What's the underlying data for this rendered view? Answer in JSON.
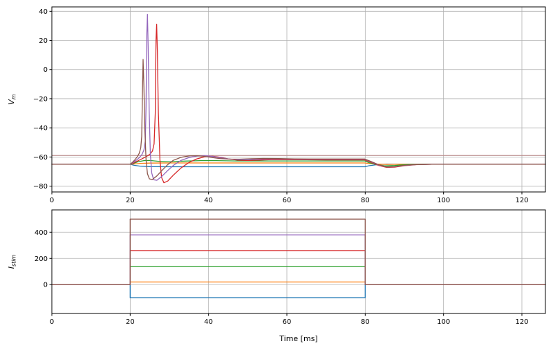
{
  "figure": {
    "background": "#ffffff",
    "grid_color": "#b0b0b0",
    "spine_color": "#000000"
  },
  "chart_data": [
    {
      "type": "line",
      "title": "",
      "xlabel": "",
      "ylabel": "V_m",
      "ylabel_parts": {
        "main": "V",
        "sub": "m"
      },
      "xlim": [
        0,
        126
      ],
      "ylim": [
        -84,
        43
      ],
      "x_ticks": [
        0,
        20,
        40,
        60,
        80,
        100,
        120
      ],
      "y_ticks": [
        -80,
        -60,
        -40,
        -20,
        0,
        20,
        40
      ],
      "grid": true,
      "legend": false,
      "annotations": [
        {
          "type": "hline",
          "y": -59,
          "color": "#bc8f8f",
          "label": "threshold-line"
        }
      ],
      "series": [
        {
          "name": "stim=-100",
          "color": "#1f77b4",
          "points": [
            [
              0,
              -65
            ],
            [
              20,
              -65
            ],
            [
              21,
              -65.7
            ],
            [
              22.5,
              -66.3
            ],
            [
              25,
              -66.6
            ],
            [
              30,
              -66.7
            ],
            [
              79.9,
              -66.7
            ],
            [
              81,
              -66
            ],
            [
              83,
              -65.3
            ],
            [
              85.5,
              -64.9
            ],
            [
              89,
              -65
            ],
            [
              126,
              -65
            ]
          ]
        },
        {
          "name": "stim=20",
          "color": "#ff7f0e",
          "points": [
            [
              0,
              -65
            ],
            [
              20,
              -65
            ],
            [
              21,
              -64.8
            ],
            [
              22.5,
              -64.4
            ],
            [
              25,
              -64.2
            ],
            [
              30,
              -64.1
            ],
            [
              79.9,
              -64.1
            ],
            [
              81,
              -64.5
            ],
            [
              83,
              -64.9
            ],
            [
              85.5,
              -65.1
            ],
            [
              89,
              -65
            ],
            [
              126,
              -65
            ]
          ]
        },
        {
          "name": "stim=140",
          "color": "#2ca02c",
          "points": [
            [
              0,
              -65
            ],
            [
              20,
              -65
            ],
            [
              21,
              -64.2
            ],
            [
              22,
              -63.3
            ],
            [
              23.5,
              -62.5
            ],
            [
              25,
              -62.4
            ],
            [
              27,
              -62.9
            ],
            [
              29,
              -63.3
            ],
            [
              31,
              -63.2
            ],
            [
              34,
              -62.8
            ],
            [
              38,
              -62.5
            ],
            [
              42,
              -62.5
            ],
            [
              47,
              -62.7
            ],
            [
              55,
              -62.7
            ],
            [
              65,
              -62.7
            ],
            [
              79.9,
              -62.7
            ],
            [
              81,
              -63.9
            ],
            [
              83,
              -65.4
            ],
            [
              85,
              -66.1
            ],
            [
              87.5,
              -65.8
            ],
            [
              91,
              -65.2
            ],
            [
              96,
              -65
            ],
            [
              126,
              -65
            ]
          ]
        },
        {
          "name": "stim=260",
          "color": "#d62728",
          "points": [
            [
              0,
              -65
            ],
            [
              20,
              -65
            ],
            [
              21,
              -63.9
            ],
            [
              22,
              -62.6
            ],
            [
              23,
              -61.3
            ],
            [
              24,
              -59.9
            ],
            [
              25,
              -58.2
            ],
            [
              25.7,
              -55.9
            ],
            [
              26.1,
              -51
            ],
            [
              26.4,
              -30
            ],
            [
              26.6,
              20
            ],
            [
              26.75,
              31
            ],
            [
              26.95,
              12
            ],
            [
              27.2,
              -30
            ],
            [
              27.6,
              -62
            ],
            [
              28,
              -74
            ],
            [
              28.6,
              -77.7
            ],
            [
              29.6,
              -76.5
            ],
            [
              31,
              -72.5
            ],
            [
              33,
              -67.5
            ],
            [
              35,
              -63.8
            ],
            [
              37,
              -61.3
            ],
            [
              39,
              -59.9
            ],
            [
              41,
              -59.5
            ],
            [
              43,
              -60.2
            ],
            [
              45,
              -61.3
            ],
            [
              47.5,
              -62.2
            ],
            [
              50,
              -62.4
            ],
            [
              53,
              -62.1
            ],
            [
              56,
              -61.8
            ],
            [
              60,
              -61.8
            ],
            [
              65,
              -61.9
            ],
            [
              70,
              -62
            ],
            [
              75,
              -62
            ],
            [
              79.9,
              -62
            ],
            [
              81.5,
              -63.7
            ],
            [
              83.5,
              -65.9
            ],
            [
              85.5,
              -67.2
            ],
            [
              87.5,
              -67
            ],
            [
              90,
              -66
            ],
            [
              93,
              -65.3
            ],
            [
              97,
              -65
            ],
            [
              126,
              -65
            ]
          ]
        },
        {
          "name": "stim=380",
          "color": "#9467bd",
          "points": [
            [
              0,
              -65
            ],
            [
              20,
              -65
            ],
            [
              20.8,
              -63.7
            ],
            [
              21.6,
              -62.1
            ],
            [
              22.4,
              -60.3
            ],
            [
              23,
              -58.3
            ],
            [
              23.5,
              -55.3
            ],
            [
              23.85,
              -49
            ],
            [
              24.05,
              -25
            ],
            [
              24.25,
              25
            ],
            [
              24.4,
              38
            ],
            [
              24.6,
              14
            ],
            [
              24.85,
              -28
            ],
            [
              25.15,
              -58
            ],
            [
              25.5,
              -71
            ],
            [
              26,
              -75.6
            ],
            [
              26.8,
              -76
            ],
            [
              28,
              -73.5
            ],
            [
              29.5,
              -69.5
            ],
            [
              31,
              -65.8
            ],
            [
              33,
              -62.3
            ],
            [
              35,
              -60.4
            ],
            [
              37,
              -59.4
            ],
            [
              39,
              -59.1
            ],
            [
              41,
              -59.6
            ],
            [
              43,
              -60.5
            ],
            [
              45,
              -61.3
            ],
            [
              47.5,
              -61.9
            ],
            [
              50,
              -61.9
            ],
            [
              53,
              -61.5
            ],
            [
              56,
              -61.3
            ],
            [
              60,
              -61.4
            ],
            [
              65,
              -61.6
            ],
            [
              70,
              -61.6
            ],
            [
              75,
              -61.6
            ],
            [
              79.9,
              -61.6
            ],
            [
              81.5,
              -63.3
            ],
            [
              83.5,
              -65.6
            ],
            [
              85.5,
              -66.9
            ],
            [
              87.5,
              -66.7
            ],
            [
              90,
              -65.8
            ],
            [
              93,
              -65.2
            ],
            [
              97,
              -65
            ],
            [
              126,
              -65
            ]
          ]
        },
        {
          "name": "stim=500",
          "color": "#8c564b",
          "points": [
            [
              0,
              -65
            ],
            [
              20,
              -65
            ],
            [
              20.6,
              -63.6
            ],
            [
              21.2,
              -61.9
            ],
            [
              21.8,
              -59.9
            ],
            [
              22.3,
              -57.5
            ],
            [
              22.7,
              -53.8
            ],
            [
              22.95,
              -46
            ],
            [
              23.15,
              -12
            ],
            [
              23.3,
              7
            ],
            [
              23.5,
              -12
            ],
            [
              23.75,
              -42
            ],
            [
              24.05,
              -62
            ],
            [
              24.4,
              -71.5
            ],
            [
              24.9,
              -75
            ],
            [
              25.6,
              -75.5
            ],
            [
              26.8,
              -73
            ],
            [
              28.2,
              -69
            ],
            [
              29.6,
              -65.2
            ],
            [
              31,
              -62.3
            ],
            [
              33,
              -60.2
            ],
            [
              35,
              -59.3
            ],
            [
              37,
              -59.1
            ],
            [
              39,
              -59.6
            ],
            [
              41,
              -60.4
            ],
            [
              43,
              -61.1
            ],
            [
              45.5,
              -61.5
            ],
            [
              48,
              -61.5
            ],
            [
              51,
              -61.2
            ],
            [
              54,
              -61
            ],
            [
              58,
              -61.1
            ],
            [
              62,
              -61.3
            ],
            [
              66,
              -61.4
            ],
            [
              70,
              -61.4
            ],
            [
              75,
              -61.4
            ],
            [
              79.9,
              -61.4
            ],
            [
              81.5,
              -63.1
            ],
            [
              83.5,
              -65.4
            ],
            [
              85.5,
              -66.8
            ],
            [
              87.5,
              -66.6
            ],
            [
              90,
              -65.7
            ],
            [
              93,
              -65.2
            ],
            [
              97,
              -65
            ],
            [
              126,
              -65
            ]
          ]
        }
      ]
    },
    {
      "type": "line",
      "title": "",
      "xlabel": "Time [ms]",
      "ylabel": "I_stim",
      "ylabel_parts": {
        "main": "I",
        "sub": "stim"
      },
      "xlim": [
        0,
        126
      ],
      "ylim": [
        -220,
        570
      ],
      "x_ticks": [
        0,
        20,
        40,
        60,
        80,
        100,
        120
      ],
      "y_ticks": [
        0,
        200,
        400
      ],
      "grid": true,
      "legend": false,
      "annotations": [],
      "series": [
        {
          "name": "stim=-100",
          "color": "#1f77b4",
          "points": [
            [
              0,
              0
            ],
            [
              20,
              0
            ],
            [
              20,
              -100
            ],
            [
              80,
              -100
            ],
            [
              80,
              0
            ],
            [
              126,
              0
            ]
          ]
        },
        {
          "name": "stim=20",
          "color": "#ff7f0e",
          "points": [
            [
              0,
              0
            ],
            [
              20,
              0
            ],
            [
              20,
              20
            ],
            [
              80,
              20
            ],
            [
              80,
              0
            ],
            [
              126,
              0
            ]
          ]
        },
        {
          "name": "stim=140",
          "color": "#2ca02c",
          "points": [
            [
              0,
              0
            ],
            [
              20,
              0
            ],
            [
              20,
              140
            ],
            [
              80,
              140
            ],
            [
              80,
              0
            ],
            [
              126,
              0
            ]
          ]
        },
        {
          "name": "stim=260",
          "color": "#d62728",
          "points": [
            [
              0,
              0
            ],
            [
              20,
              0
            ],
            [
              20,
              260
            ],
            [
              80,
              260
            ],
            [
              80,
              0
            ],
            [
              126,
              0
            ]
          ]
        },
        {
          "name": "stim=380",
          "color": "#9467bd",
          "points": [
            [
              0,
              0
            ],
            [
              20,
              0
            ],
            [
              20,
              380
            ],
            [
              80,
              380
            ],
            [
              80,
              0
            ],
            [
              126,
              0
            ]
          ]
        },
        {
          "name": "stim=500",
          "color": "#8c564b",
          "points": [
            [
              0,
              0
            ],
            [
              20,
              0
            ],
            [
              20,
              500
            ],
            [
              80,
              500
            ],
            [
              80,
              0
            ],
            [
              126,
              0
            ]
          ]
        }
      ]
    }
  ]
}
